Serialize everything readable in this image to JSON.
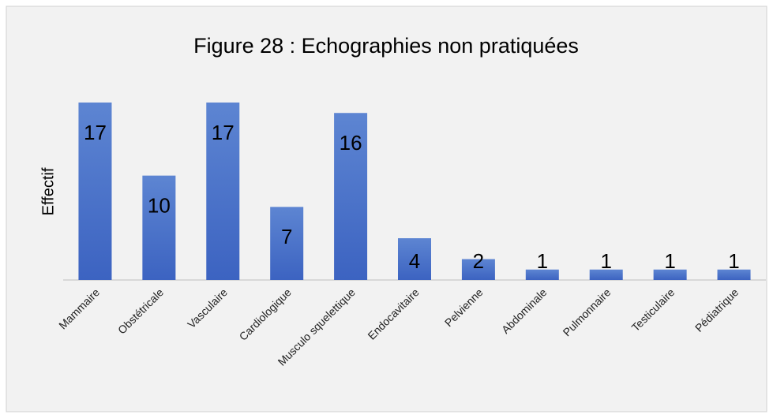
{
  "chart_data": {
    "type": "bar",
    "title": "Figure 28 : Echographies non pratiquées",
    "y_label": "Effectif",
    "categories": [
      "Mammaire",
      "Obstétricale",
      "Vasculaire",
      "Cardiologique",
      "Musculo squelettique",
      "Endocavitaire",
      "Pelvienne",
      "Abdominale",
      "Pulmonnaire",
      "Testiculaire",
      "Pédiatrique"
    ],
    "values": [
      17,
      10,
      17,
      7,
      16,
      4,
      2,
      1,
      1,
      1,
      1
    ],
    "color": "#4a72c8",
    "ylim": [
      0,
      17
    ],
    "data_labels": true
  }
}
